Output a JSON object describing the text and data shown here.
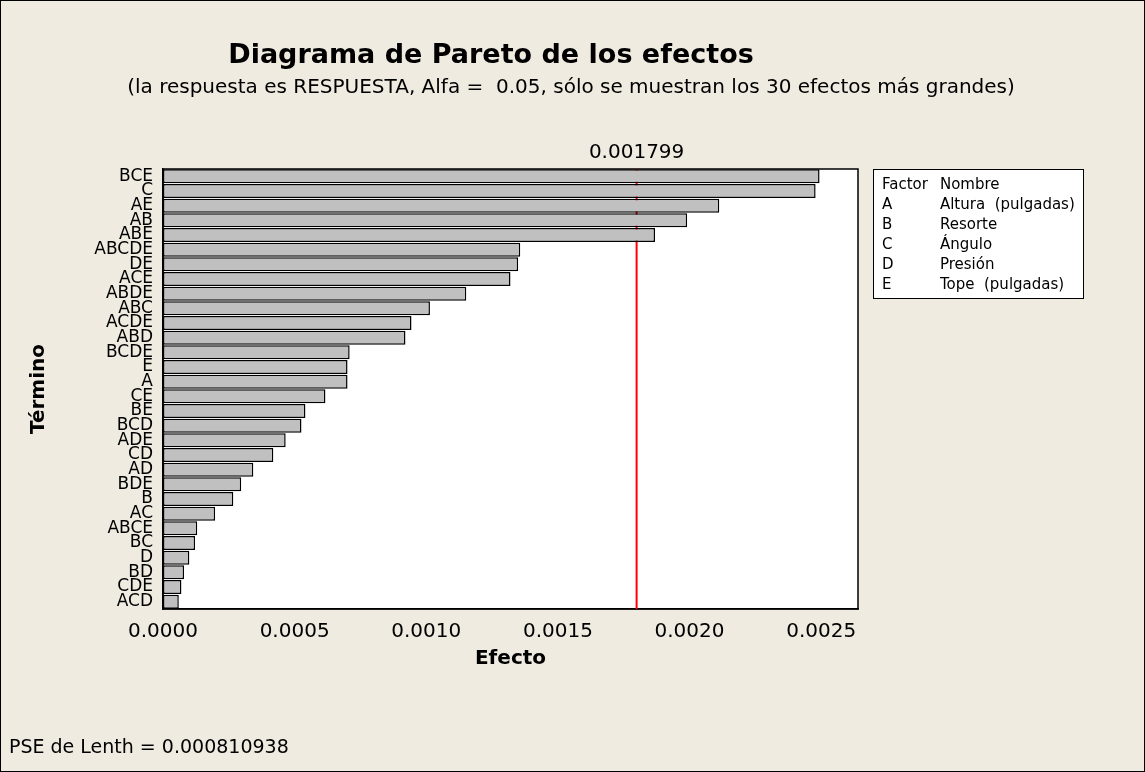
{
  "chart_data": {
    "type": "bar",
    "orientation": "horizontal",
    "title": "Diagrama de Pareto de los efectos",
    "subtitle": "(la respuesta es RESPUESTA, Alfa =  0.05, sólo se muestran los 30 efectos más grandes)",
    "xlabel": "Efecto",
    "ylabel": "Término",
    "categories": [
      "BCE",
      "C",
      "AE",
      "AB",
      "ABE",
      "ABCDE",
      "DE",
      "ACE",
      "ABDE",
      "ABC",
      "ACDE",
      "ABD",
      "BCDE",
      "E",
      "A",
      "CE",
      "BE",
      "BCD",
      "ADE",
      "CD",
      "AD",
      "BDE",
      "B",
      "AC",
      "ABCE",
      "BC",
      "D",
      "BD",
      "CDE",
      "ACD"
    ],
    "values": [
      0.002494,
      0.002479,
      0.002113,
      0.001991,
      0.001869,
      0.001357,
      0.001349,
      0.00132,
      0.001152,
      0.001014,
      0.000944,
      0.000921,
      0.000709,
      0.000701,
      0.000701,
      0.000617,
      0.000541,
      0.000526,
      0.000466,
      0.000419,
      0.000343,
      0.000297,
      0.000267,
      0.000198,
      0.00013,
      0.000122,
      0.0001,
      8e-05,
      7e-05,
      6e-05
    ],
    "color": "#c0c0c0",
    "xlim": [
      0,
      0.00264
    ],
    "xticks": [
      {
        "value": 0,
        "label": "0.0000"
      },
      {
        "value": 0.0005,
        "label": "0.0005"
      },
      {
        "value": 0.001,
        "label": "0.0010"
      },
      {
        "value": 0.0015,
        "label": "0.0015"
      },
      {
        "value": 0.002,
        "label": "0.0020"
      },
      {
        "value": 0.0025,
        "label": "0.0025"
      }
    ],
    "ref_lines": [
      {
        "axis": "x",
        "value": 0.001799,
        "label": "0.001799",
        "color": "#ff0000"
      }
    ],
    "grid": false,
    "legend": false,
    "annotations": [
      "Factor",
      "Nombre",
      "A",
      "Altura  (pulgadas)",
      "B",
      "Resorte",
      "C",
      "Ángulo",
      "D",
      "Presión",
      "E",
      "Tope  (pulgadas)",
      "PSE de Lenth = 0.000810938"
    ]
  }
}
